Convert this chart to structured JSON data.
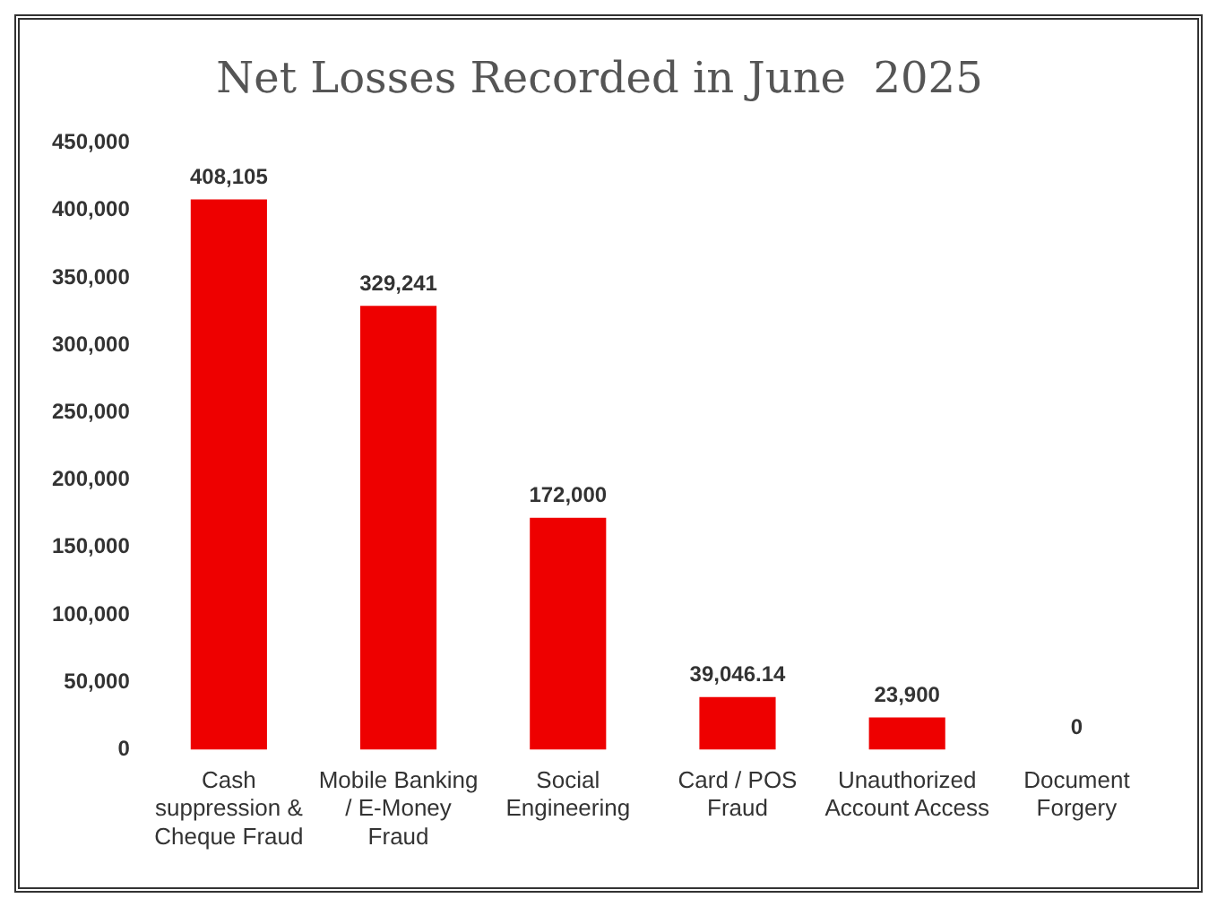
{
  "chart_data": {
    "type": "bar",
    "title": "Net Losses Recorded in June  2025",
    "categories": [
      "Cash suppression & Cheque Fraud",
      "Mobile Banking / E-Money Fraud",
      "Social Engineering",
      "Card / POS Fraud",
      "Unauthorized Account Access",
      "Document Forgery"
    ],
    "values": [
      408105,
      329241,
      172000,
      39046.14,
      23900,
      0
    ],
    "value_labels": [
      "408,105",
      "329,241",
      "172,000",
      "39,046.14",
      "23,900",
      "0"
    ],
    "color": "#ee0000",
    "ylim": [
      0,
      450000
    ],
    "yticks": [
      {
        "value": 0,
        "label": "0"
      },
      {
        "value": 50000,
        "label": "50,000"
      },
      {
        "value": 100000,
        "label": "100,000"
      },
      {
        "value": 150000,
        "label": "150,000"
      },
      {
        "value": 200000,
        "label": "200,000"
      },
      {
        "value": 250000,
        "label": "250,000"
      },
      {
        "value": 300000,
        "label": "300,000"
      },
      {
        "value": 350000,
        "label": "350,000"
      },
      {
        "value": 400000,
        "label": "400,000"
      },
      {
        "value": 450000,
        "label": "450,000"
      }
    ],
    "grid": false
  }
}
